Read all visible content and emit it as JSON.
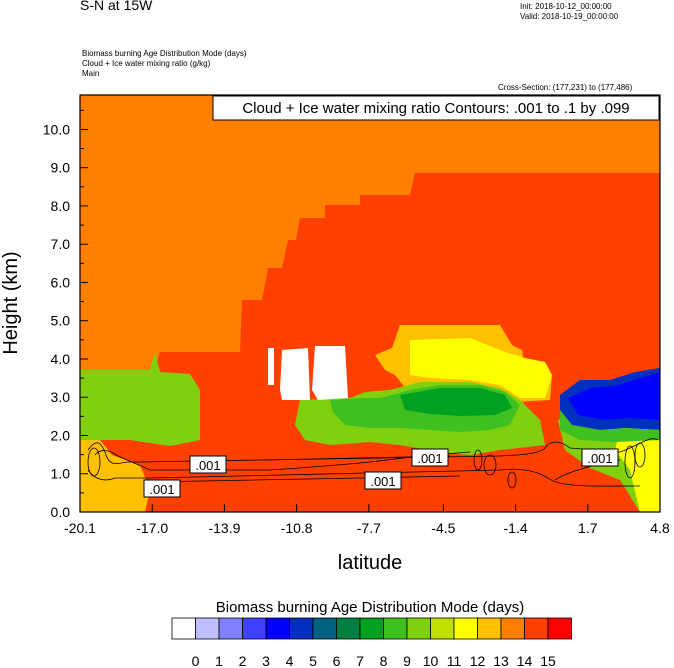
{
  "header": {
    "main_title": "S-N at 15W",
    "init": "Init: 2018-10-12_00:00:00",
    "valid": "Valid: 2018-10-19_00:00:00",
    "field_line1": "Biomass burning Age Distribution Mode   (days)",
    "field_line2": "Cloud + Ice water mixing ratio   (g/kg)",
    "field_line3": "Main",
    "cross_section": "Cross-Section: (177,231) to (177,486)",
    "contour_note": "Cloud + Ice water mixing ratio Contours: .001 to .1 by .099"
  },
  "chart_data": {
    "type": "heatmap",
    "xlabel": "latitude",
    "ylabel": "Height (km)",
    "xlim": [
      -20.1,
      4.8
    ],
    "ylim": [
      0.0,
      10.9
    ],
    "x_ticks": [
      "-20.1",
      "-17.0",
      "-13.9",
      "-10.8",
      "-7.7",
      "-4.5",
      "-1.4",
      "1.7",
      "4.8"
    ],
    "y_ticks": [
      "0.0",
      "1.0",
      "2.0",
      "3.0",
      "4.0",
      "5.0",
      "6.0",
      "7.0",
      "8.0",
      "9.0",
      "10.0"
    ],
    "contour_labels": [
      ".001",
      ".001",
      ".001",
      ".001",
      ".001"
    ],
    "colorbar": {
      "title": "Biomass burning Age Distribution Mode  (days)",
      "labels": [
        "0",
        "1",
        "2",
        "3",
        "4",
        "5",
        "6",
        "7",
        "8",
        "9",
        "10",
        "11",
        "12",
        "13",
        "14",
        "15"
      ],
      "colors": [
        "#ffffff",
        "#c0c0ff",
        "#8080ff",
        "#4040ff",
        "#0000ff",
        "#0030c0",
        "#006080",
        "#008040",
        "#00a020",
        "#40c020",
        "#80d010",
        "#c0e000",
        "#ffff00",
        "#ffc000",
        "#ff8000",
        "#ff4000",
        "#ff0000"
      ]
    },
    "regions_days": {
      "upper_layer": 14,
      "middle_plume": 15,
      "mid_level_tongue": 13,
      "green_core": 9,
      "blue_patch_north": 4,
      "surface_south": 10
    }
  }
}
